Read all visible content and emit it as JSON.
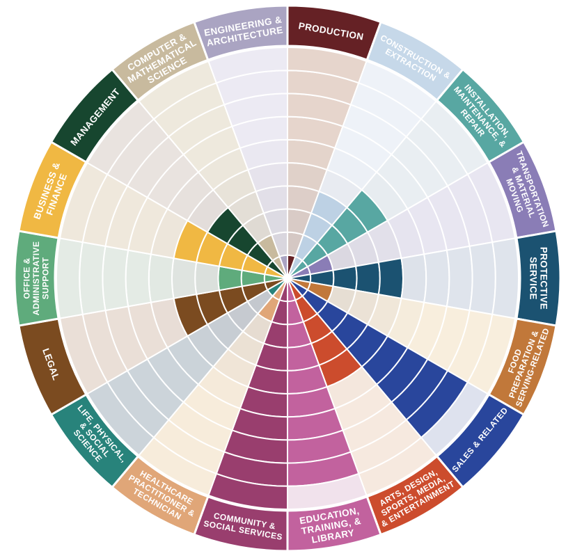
{
  "page": {
    "background": "#ffffff"
  },
  "chart_data": {
    "type": "bar",
    "variant": "radial-ring-wheel",
    "title": "",
    "legend": "none",
    "grid": "concentric-rings",
    "rings_total": 10,
    "sector_angle_deg": 20,
    "start_angle_deg": 0,
    "direction": "clockwise",
    "divider_color": "#ffffff",
    "categories": [
      "PRODUCTION",
      "CONSTRUCTION & EXTRACTION",
      "INSTALLATION, MAINTENANCE, & REPAIR",
      "TRANSPORTATION & MATERIAL MOVING",
      "PROTECTIVE SERVICE",
      "FOOD PREPARATION & SERVING-RELATED",
      "SALES & RELATED",
      "ARTS, DESIGN, SPORTS, MEDIA, & ENTERTAINMENT",
      "EDUCATION, TRAINING, & LIBRARY",
      "COMMUNITY & SOCIAL SERVICES",
      "HEALTHCARE PRACTITIONER & TECHNICIAN",
      "LIFE, PHYSICAL, & SOCIAL SCIENCE",
      "LEGAL",
      "OFFICE & ADMINISTRATIVE SUPPORT",
      "BUSINESS & FINANCE",
      "MANAGEMENT",
      "COMPUTER & MATHEMATICAL SCIENCE",
      "ENGINEERING & ARCHITECTURE"
    ],
    "values": [
      1,
      4,
      5,
      2,
      5,
      2,
      9,
      5,
      9,
      10,
      2,
      1,
      5,
      3,
      5,
      4,
      2,
      1
    ],
    "value_unit": "rings filled out of 10",
    "sectors": [
      {
        "slug": "production",
        "label": "PRODUCTION",
        "label_lines": [
          "PRODUCTION"
        ],
        "color": "#652125",
        "tint": "#e6d5cc",
        "rings_filled": 1
      },
      {
        "slug": "construction-extraction",
        "label": "CONSTRUCTION & EXTRACTION",
        "label_lines": [
          "CONSTRUCTION &",
          "EXTRACTION"
        ],
        "color": "#c6d8e9",
        "fill_color": "#bdd1e4",
        "tint": "#eef2f8",
        "rings_filled": 4
      },
      {
        "slug": "installation-maintenance-repair",
        "label": "INSTALLATION, MAINTENANCE, & REPAIR",
        "label_lines": [
          "INSTALLATION,",
          "MAINTENANCE, &",
          "REPAIR"
        ],
        "color": "#58a7a2",
        "tint": "#e9eef2",
        "rings_filled": 5
      },
      {
        "slug": "transportation-material-moving",
        "label": "TRANSPORTATION & MATERIAL MOVING",
        "label_lines": [
          "TRANSPORTATION",
          "& MATERIAL",
          "MOVING"
        ],
        "color": "#8a7db6",
        "tint": "#e8e6f1",
        "rings_filled": 2
      },
      {
        "slug": "protective-service",
        "label": "PROTECTIVE SERVICE",
        "label_lines": [
          "PROTECTIVE",
          "SERVICE"
        ],
        "color": "#1b5271",
        "tint": "#dfe4ec",
        "rings_filled": 5
      },
      {
        "slug": "food-preparation-serving-related",
        "label": "FOOD PREPARATION & SERVING-RELATED",
        "label_lines": [
          "FOOD",
          "PREPARATION &",
          "SERVING-RELATED"
        ],
        "color": "#c1783a",
        "tint": "#f8eedd",
        "rings_filled": 2
      },
      {
        "slug": "sales-related",
        "label": "SALES & RELATED",
        "label_lines": [
          "SALES & RELATED"
        ],
        "color": "#29469c",
        "tint": "#dee2ee",
        "rings_filled": 9
      },
      {
        "slug": "arts-design-sports-media-entertainment",
        "label": "ARTS, DESIGN, SPORTS, MEDIA, & ENTERTAINMENT",
        "label_lines": [
          "ARTS, DESIGN,",
          "SPORTS, MEDIA,",
          "& ENTERTAINMENT"
        ],
        "color": "#cc4c2d",
        "tint": "#f6e9df",
        "rings_filled": 5
      },
      {
        "slug": "education-training-library",
        "label": "EDUCATION, TRAINING, & LIBRARY",
        "label_lines": [
          "EDUCATION,",
          "TRAINING, &",
          "LIBRARY"
        ],
        "color": "#c2629e",
        "tint": "#f1e2ec",
        "rings_filled": 9
      },
      {
        "slug": "community-social-services",
        "label": "COMMUNITY & SOCIAL SERVICES",
        "label_lines": [
          "COMMUNITY &",
          "SOCIAL SERVICES"
        ],
        "color": "#993e6e",
        "tint": "#efdfe8",
        "rings_filled": 10
      },
      {
        "slug": "healthcare-practitioner-technician",
        "label": "HEALTHCARE PRACTITIONER & TECHNICIAN",
        "label_lines": [
          "HEALTHCARE",
          "PRACTITIONER &",
          "TECHNICIAN"
        ],
        "color": "#e0a678",
        "tint": "#f7ecdb",
        "rings_filled": 2
      },
      {
        "slug": "life-physical-social-science",
        "label": "LIFE, PHYSICAL, & SOCIAL SCIENCE",
        "label_lines": [
          "LIFE, PHYSICAL,",
          "& SOCIAL",
          "SCIENCE"
        ],
        "color": "#28837b",
        "tint": "#ccd4da",
        "rings_filled": 1
      },
      {
        "slug": "legal",
        "label": "LEGAL",
        "label_lines": [
          "LEGAL"
        ],
        "color": "#7b4b20",
        "tint": "#eadfd7",
        "rings_filled": 5
      },
      {
        "slug": "office-administrative-support",
        "label": "OFFICE & ADMINISTRATIVE SUPPORT",
        "label_lines": [
          "OFFICE &",
          "ADMINISTRATIVE",
          "SUPPORT"
        ],
        "color": "#5fab7c",
        "tint": "#e4ebe5",
        "rings_filled": 3
      },
      {
        "slug": "business-finance",
        "label": "BUSINESS & FINANCE",
        "label_lines": [
          "BUSINESS &",
          "FINANCE"
        ],
        "color": "#f0b843",
        "tint": "#efe8dc",
        "rings_filled": 5
      },
      {
        "slug": "management",
        "label": "MANAGEMENT",
        "label_lines": [
          "MANAGEMENT"
        ],
        "color": "#17462f",
        "tint": "#e9e3df",
        "rings_filled": 4
      },
      {
        "slug": "computer-mathematical-science",
        "label": "COMPUTER & MATHEMATICAL SCIENCE",
        "label_lines": [
          "COMPUTER &",
          "MATHEMATICAL",
          "SCIENCE"
        ],
        "color": "#c8ba9e",
        "tint": "#eee9dd",
        "rings_filled": 2
      },
      {
        "slug": "engineering-architecture",
        "label": "ENGINEERING & ARCHITECTURE",
        "label_lines": [
          "ENGINEERING &",
          "ARCHITECTURE"
        ],
        "color": "#aaa4c2",
        "tint": "#eceaf3",
        "rings_filled": 1
      }
    ]
  }
}
